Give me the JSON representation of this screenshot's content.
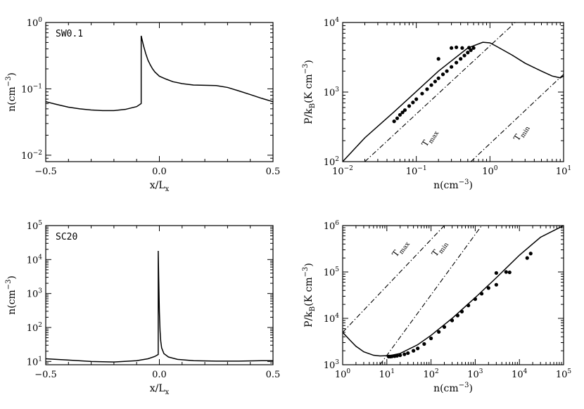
{
  "chart_data": [
    {
      "id": "p1",
      "type": "line",
      "panel_label": "SW0.1",
      "xlabel": "x/L",
      "xlabel_sub": "x",
      "ylabel": "n(cm",
      "ylabel_sup": "−3",
      "ylabel_close": ")",
      "xscale": "linear",
      "yscale": "log",
      "xlim": [
        -0.5,
        0.5
      ],
      "ylim": [
        0.008,
        1.0
      ],
      "xticks": [
        {
          "v": -0.5,
          "label": "−0.5"
        },
        {
          "v": 0.0,
          "label": "0.0"
        },
        {
          "v": 0.5,
          "label": "0.5"
        }
      ],
      "yticks": [
        {
          "v": 0.01,
          "base": "10",
          "exp": "−2"
        },
        {
          "v": 0.1,
          "base": "10",
          "exp": "−1"
        },
        {
          "v": 1.0,
          "base": "10",
          "exp": "0"
        }
      ],
      "series": [
        {
          "name": "density",
          "x": [
            -0.5,
            -0.45,
            -0.4,
            -0.35,
            -0.3,
            -0.25,
            -0.2,
            -0.15,
            -0.1,
            -0.08,
            -0.08,
            -0.07,
            -0.06,
            -0.05,
            -0.04,
            -0.03,
            -0.02,
            0.0,
            0.03,
            0.06,
            0.1,
            0.15,
            0.2,
            0.25,
            0.3,
            0.35,
            0.4,
            0.45,
            0.5
          ],
          "y": [
            0.064,
            0.058,
            0.053,
            0.05,
            0.048,
            0.047,
            0.047,
            0.049,
            0.054,
            0.06,
            0.63,
            0.45,
            0.34,
            0.27,
            0.23,
            0.2,
            0.18,
            0.155,
            0.14,
            0.128,
            0.12,
            0.114,
            0.113,
            0.112,
            0.105,
            0.093,
            0.082,
            0.072,
            0.064
          ]
        }
      ]
    },
    {
      "id": "p2",
      "type": "scatter",
      "xlabel": "n(cm",
      "xlabel_sup": "−3",
      "xlabel_close": ")",
      "ylabel": "P/k",
      "ylabel_sub": "B",
      "ylabel_rest": "(K cm",
      "ylabel_sup": "−3",
      "ylabel_close": ")",
      "xscale": "log",
      "yscale": "log",
      "xlim": [
        0.01,
        10
      ],
      "ylim": [
        100,
        10000
      ],
      "xticks": [
        {
          "v": 0.01,
          "base": "10",
          "exp": "−2"
        },
        {
          "v": 0.1,
          "base": "10",
          "exp": "−1"
        },
        {
          "v": 1,
          "base": "10",
          "exp": "0"
        },
        {
          "v": 10,
          "base": "10",
          "exp": "1"
        }
      ],
      "yticks": [
        {
          "v": 100,
          "base": "10",
          "exp": "2"
        },
        {
          "v": 1000,
          "base": "10",
          "exp": "3"
        },
        {
          "v": 10000,
          "base": "10",
          "exp": "4"
        }
      ],
      "series": [
        {
          "name": "equilibrium curve",
          "style": "solid",
          "x": [
            0.01,
            0.02,
            0.05,
            0.1,
            0.2,
            0.5,
            0.8,
            1.0,
            1.2,
            2.0,
            3.0,
            5.0,
            7.0,
            9.0,
            10.0
          ],
          "y": [
            100,
            220,
            520,
            1020,
            2000,
            4300,
            5200,
            5100,
            4600,
            3400,
            2600,
            2000,
            1700,
            1600,
            1700
          ]
        },
        {
          "name": "T_max",
          "style": "dashdot",
          "x": [
            0.02,
            2.2
          ],
          "y": [
            100,
            10000
          ]
        },
        {
          "name": "T_min",
          "style": "dashdot",
          "x": [
            0.55,
            10
          ],
          "y": [
            100,
            1800
          ]
        },
        {
          "name": "simulation points",
          "style": "points",
          "x": [
            0.05,
            0.055,
            0.06,
            0.065,
            0.07,
            0.08,
            0.09,
            0.1,
            0.12,
            0.14,
            0.16,
            0.18,
            0.2,
            0.23,
            0.26,
            0.3,
            0.35,
            0.4,
            0.45,
            0.5,
            0.55,
            0.6,
            0.2,
            0.3,
            0.35,
            0.42,
            0.52
          ],
          "y": [
            380,
            420,
            470,
            510,
            550,
            630,
            710,
            790,
            950,
            1100,
            1260,
            1420,
            1580,
            1800,
            2000,
            2300,
            2650,
            3000,
            3350,
            3700,
            4000,
            4300,
            3000,
            4300,
            4400,
            4300,
            4350
          ]
        }
      ],
      "annotations": [
        {
          "text": "T",
          "sub": "max",
          "x": 0.16,
          "y": 210,
          "angle": -58
        },
        {
          "text": "T",
          "sub": "min",
          "x": 2.8,
          "y": 250,
          "angle": -58
        }
      ]
    },
    {
      "id": "p3",
      "type": "line",
      "panel_label": "SC20",
      "xlabel": "x/L",
      "xlabel_sub": "x",
      "ylabel": "n(cm",
      "ylabel_sup": "−3",
      "ylabel_close": ")",
      "xscale": "linear",
      "yscale": "log",
      "xlim": [
        -0.5,
        0.5
      ],
      "ylim": [
        8,
        100000
      ],
      "xticks": [
        {
          "v": -0.5,
          "label": "−0.5"
        },
        {
          "v": 0.0,
          "label": "0.0"
        },
        {
          "v": 0.5,
          "label": "0.5"
        }
      ],
      "yticks": [
        {
          "v": 10,
          "base": "10",
          "exp": "1"
        },
        {
          "v": 100,
          "base": "10",
          "exp": "2"
        },
        {
          "v": 1000,
          "base": "10",
          "exp": "3"
        },
        {
          "v": 10000,
          "base": "10",
          "exp": "4"
        },
        {
          "v": 100000,
          "base": "10",
          "exp": "5"
        }
      ],
      "series": [
        {
          "name": "density",
          "x": [
            -0.5,
            -0.4,
            -0.3,
            -0.2,
            -0.1,
            -0.05,
            -0.02,
            -0.005,
            -0.005,
            -0.003,
            0.0,
            0.003,
            0.006,
            0.01,
            0.02,
            0.04,
            0.08,
            0.15,
            0.25,
            0.35,
            0.45,
            0.5
          ],
          "y": [
            12,
            11,
            10,
            9.6,
            10.5,
            12,
            14,
            16,
            18000,
            3000,
            300,
            80,
            40,
            25,
            17,
            13.5,
            11.5,
            10.5,
            10.2,
            10.2,
            10.5,
            10.5
          ]
        }
      ]
    },
    {
      "id": "p4",
      "type": "scatter",
      "xlabel": "n(cm",
      "xlabel_sup": "−3",
      "xlabel_close": ")",
      "ylabel": "P/k",
      "ylabel_sub": "B",
      "ylabel_rest": "(K cm",
      "ylabel_sup": "−3",
      "ylabel_close": ")",
      "xscale": "log",
      "yscale": "log",
      "xlim": [
        1,
        100000
      ],
      "ylim": [
        1000,
        1000000
      ],
      "xticks": [
        {
          "v": 1,
          "base": "10",
          "exp": "0"
        },
        {
          "v": 10,
          "base": "10",
          "exp": "1"
        },
        {
          "v": 100,
          "base": "10",
          "exp": "2"
        },
        {
          "v": 1000,
          "base": "10",
          "exp": "3"
        },
        {
          "v": 10000,
          "base": "10",
          "exp": "4"
        },
        {
          "v": 100000,
          "base": "10",
          "exp": "5"
        }
      ],
      "yticks": [
        {
          "v": 1000,
          "base": "10",
          "exp": "3"
        },
        {
          "v": 10000,
          "base": "10",
          "exp": "4"
        },
        {
          "v": 100000,
          "base": "10",
          "exp": "5"
        },
        {
          "v": 1000000,
          "base": "10",
          "exp": "6"
        }
      ],
      "series": [
        {
          "name": "equilibrium curve",
          "style": "solid",
          "x": [
            1,
            1.5,
            2,
            3,
            5,
            7,
            9,
            12,
            20,
            50,
            100,
            300,
            1000,
            3000,
            10000,
            30000,
            100000
          ],
          "y": [
            5000,
            3300,
            2500,
            1900,
            1600,
            1550,
            1560,
            1580,
            1750,
            2700,
            4300,
            10000,
            28000,
            75000,
            230000,
            560000,
            1000000
          ]
        },
        {
          "name": "T_max",
          "style": "dashdot",
          "x": [
            1,
            200
          ],
          "y": [
            5000,
            1000000
          ]
        },
        {
          "name": "T_min",
          "style": "dashdot",
          "x": [
            7,
            1400
          ],
          "y": [
            1000,
            1000000
          ]
        },
        {
          "name": "simulation points",
          "style": "points",
          "x": [
            11,
            12,
            13,
            15,
            17,
            20,
            25,
            30,
            40,
            50,
            70,
            100,
            150,
            200,
            300,
            400,
            500,
            700,
            1000,
            1400,
            2000,
            3000,
            5000,
            6000,
            15000,
            18000,
            3000
          ],
          "y": [
            1500,
            1500,
            1510,
            1530,
            1560,
            1600,
            1680,
            1780,
            2000,
            2250,
            2800,
            3700,
            5100,
            6500,
            9000,
            11500,
            14000,
            19000,
            26000,
            34000,
            45000,
            53000,
            100000,
            98000,
            200000,
            250000,
            95000
          ]
        }
      ],
      "annotations": [
        {
          "text": "T",
          "sub": "max",
          "x": 22,
          "y": 300000,
          "angle": -54
        },
        {
          "text": "T",
          "sub": "min",
          "x": 170,
          "y": 300000,
          "angle": -54
        }
      ]
    }
  ]
}
